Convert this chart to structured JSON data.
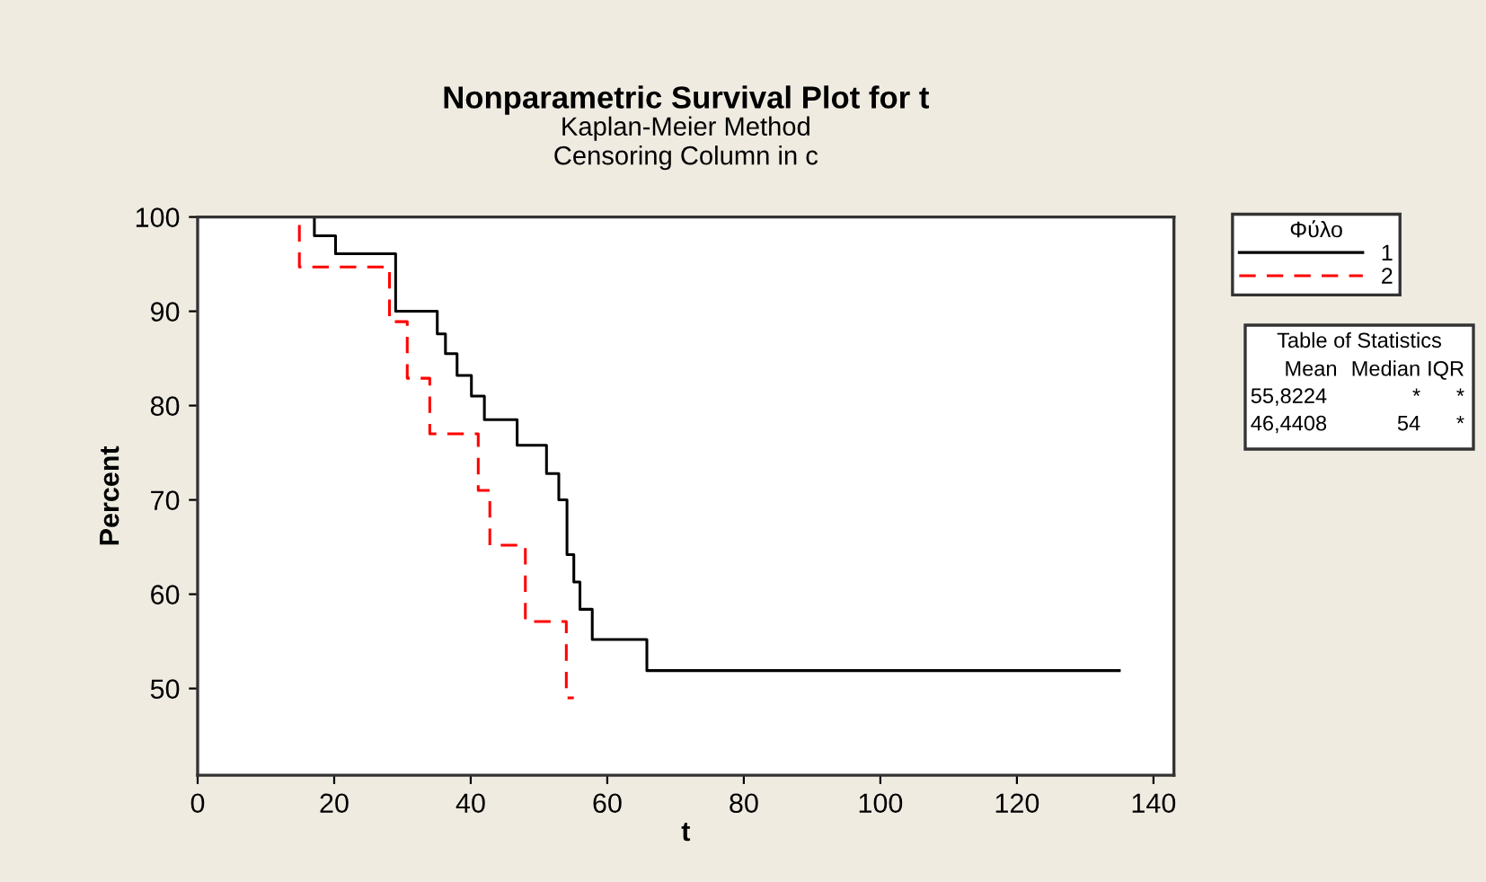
{
  "chart_data": {
    "type": "step",
    "title": "Nonparametric Survival Plot for t",
    "subtitle": "Kaplan-Meier Method\nCensoring Column in c",
    "xlabel": "t",
    "ylabel": "Percent",
    "legend_title": "Φύλο",
    "series": [
      {
        "name": "1",
        "color": "#000000",
        "line_style": "solid",
        "x": [
          0,
          17.1,
          20.2,
          29.0,
          35.1,
          36.3,
          38.0,
          40.1,
          42.0,
          46.8,
          51.1,
          52.9,
          54.1,
          55.1,
          56.0,
          57.8,
          65.8,
          135
        ],
        "values": [
          100,
          98.0,
          96.1,
          90.0,
          87.6,
          85.5,
          83.2,
          81.0,
          78.5,
          75.8,
          72.8,
          70.0,
          64.2,
          61.3,
          58.4,
          55.2,
          51.9,
          51.9
        ]
      },
      {
        "name": "2",
        "color": "#ff0000",
        "line_style": "dashed",
        "x": [
          0,
          14.9,
          28.1,
          30.7,
          34.0,
          41.1,
          42.8,
          48.0,
          54.0,
          55.1
        ],
        "values": [
          100,
          94.7,
          88.9,
          82.9,
          77.0,
          71.0,
          65.2,
          57.1,
          49.0,
          49.0
        ]
      }
    ],
    "xlim": [
      0,
      143
    ],
    "xticks": [
      0,
      20,
      40,
      60,
      80,
      100,
      120,
      140
    ],
    "ylim": [
      40.8,
      100
    ],
    "yticks": [
      50,
      60,
      70,
      80,
      90,
      100
    ],
    "grid": false,
    "legend": "right",
    "marker": "none",
    "annotations": [
      "Table of Statistics",
      "Mean",
      "Median",
      "IQR",
      "55,8224",
      "*",
      "*",
      "46,4408",
      "54",
      "*"
    ]
  }
}
